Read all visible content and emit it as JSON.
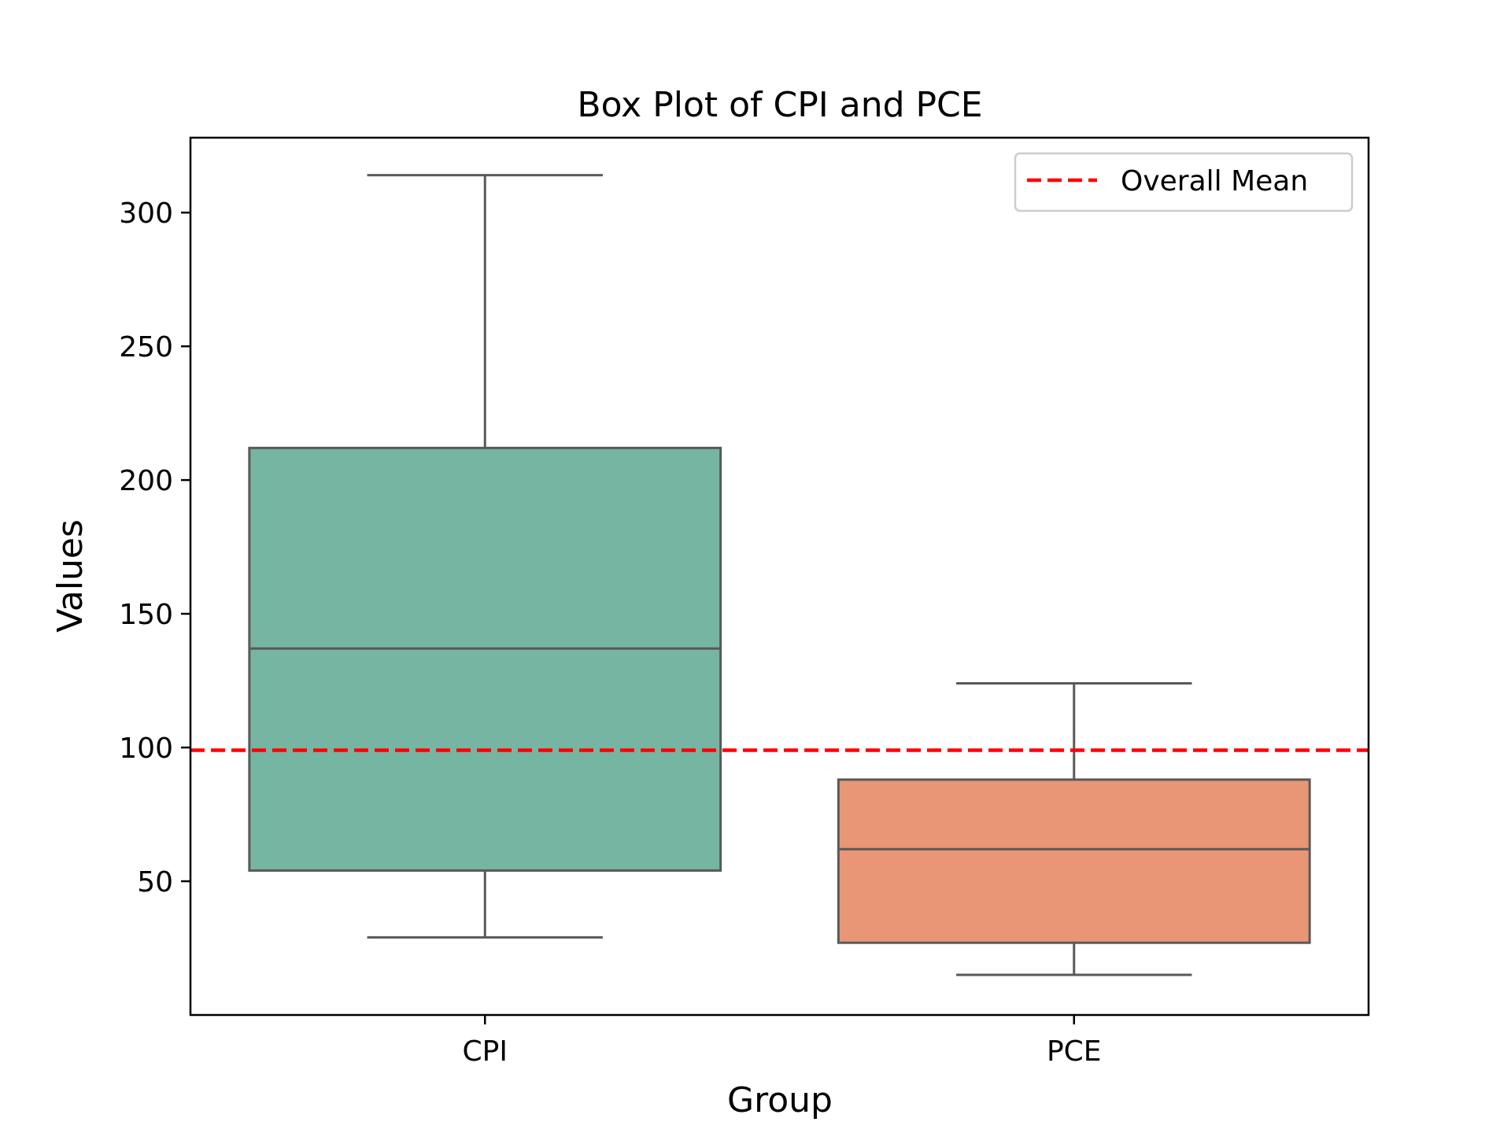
{
  "chart_data": {
    "type": "box",
    "title": "Box Plot of CPI and PCE",
    "xlabel": "Group",
    "ylabel": "Values",
    "ylim": [
      0,
      328
    ],
    "yticks": [
      50,
      100,
      150,
      200,
      250,
      300
    ],
    "categories": [
      "CPI",
      "PCE"
    ],
    "boxes": [
      {
        "name": "CPI",
        "whisker_low": 29,
        "q1": 54,
        "median": 137,
        "q3": 212,
        "whisker_high": 314,
        "color": "#76b5a1"
      },
      {
        "name": "PCE",
        "whisker_low": 15,
        "q1": 27,
        "median": 62,
        "q3": 88,
        "whisker_high": 124,
        "color": "#e89676"
      }
    ],
    "reference_line": {
      "label": "Overall Mean",
      "value": 99,
      "color": "#ff0000",
      "style": "dashed"
    },
    "legend": {
      "position": "top-right",
      "entries": [
        "Overall Mean"
      ]
    },
    "grid": false
  }
}
